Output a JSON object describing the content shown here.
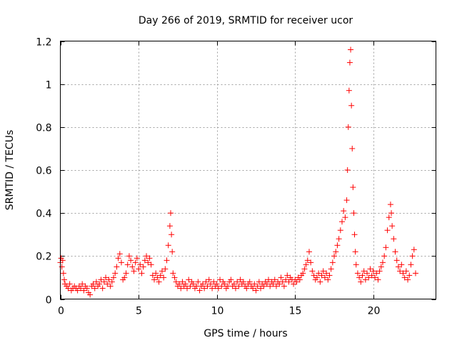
{
  "chart_data": {
    "type": "scatter",
    "title": "Day 266 of 2019, SRMTID for receiver ucor",
    "xlabel": "GPS time / hours",
    "ylabel": "SRMTID / TECUs",
    "xlim": [
      0,
      24
    ],
    "ylim": [
      0,
      1.2
    ],
    "x_ticks": [
      0,
      5,
      10,
      15,
      20
    ],
    "x_tick_labels": [
      "0",
      "5",
      "10",
      "15",
      "20"
    ],
    "y_ticks": [
      0,
      0.2,
      0.4,
      0.6,
      0.8,
      1,
      1.2
    ],
    "y_tick_labels": [
      "0",
      "0.2",
      "0.4",
      "0.6",
      "0.8",
      "1",
      "1.2"
    ],
    "grid": true,
    "marker": "+",
    "colors": {
      "series": "#ff0000",
      "grid": "#a0a0a0",
      "frame": "#000000"
    },
    "series": [
      {
        "name": "SRMTID",
        "points": [
          [
            0.0,
            0.17
          ],
          [
            0.05,
            0.19
          ],
          [
            0.1,
            0.15
          ],
          [
            0.15,
            0.18
          ],
          [
            0.2,
            0.12
          ],
          [
            0.25,
            0.09
          ],
          [
            0.3,
            0.07
          ],
          [
            0.4,
            0.06
          ],
          [
            0.5,
            0.05
          ],
          [
            0.6,
            0.07
          ],
          [
            0.7,
            0.04
          ],
          [
            0.8,
            0.05
          ],
          [
            0.9,
            0.06
          ],
          [
            1.0,
            0.05
          ],
          [
            1.1,
            0.04
          ],
          [
            1.2,
            0.06
          ],
          [
            1.3,
            0.05
          ],
          [
            1.4,
            0.07
          ],
          [
            1.5,
            0.04
          ],
          [
            1.6,
            0.06
          ],
          [
            1.7,
            0.05
          ],
          [
            1.8,
            0.03
          ],
          [
            1.9,
            0.02
          ],
          [
            2.0,
            0.06
          ],
          [
            2.1,
            0.07
          ],
          [
            2.2,
            0.05
          ],
          [
            2.3,
            0.08
          ],
          [
            2.4,
            0.06
          ],
          [
            2.5,
            0.07
          ],
          [
            2.6,
            0.09
          ],
          [
            2.7,
            0.05
          ],
          [
            2.8,
            0.08
          ],
          [
            2.9,
            0.1
          ],
          [
            3.0,
            0.07
          ],
          [
            3.1,
            0.09
          ],
          [
            3.2,
            0.06
          ],
          [
            3.3,
            0.08
          ],
          [
            3.4,
            0.1
          ],
          [
            3.5,
            0.12
          ],
          [
            3.6,
            0.15
          ],
          [
            3.7,
            0.19
          ],
          [
            3.8,
            0.21
          ],
          [
            3.9,
            0.17
          ],
          [
            4.0,
            0.09
          ],
          [
            4.1,
            0.1
          ],
          [
            4.2,
            0.12
          ],
          [
            4.3,
            0.16
          ],
          [
            4.4,
            0.2
          ],
          [
            4.5,
            0.18
          ],
          [
            4.6,
            0.15
          ],
          [
            4.7,
            0.13
          ],
          [
            4.8,
            0.17
          ],
          [
            4.9,
            0.19
          ],
          [
            5.0,
            0.14
          ],
          [
            5.1,
            0.16
          ],
          [
            5.2,
            0.12
          ],
          [
            5.3,
            0.15
          ],
          [
            5.4,
            0.18
          ],
          [
            5.5,
            0.2
          ],
          [
            5.6,
            0.17
          ],
          [
            5.7,
            0.19
          ],
          [
            5.8,
            0.16
          ],
          [
            5.9,
            0.11
          ],
          [
            6.0,
            0.09
          ],
          [
            6.1,
            0.12
          ],
          [
            6.2,
            0.1
          ],
          [
            6.3,
            0.08
          ],
          [
            6.4,
            0.11
          ],
          [
            6.5,
            0.13
          ],
          [
            6.6,
            0.1
          ],
          [
            6.7,
            0.14
          ],
          [
            6.8,
            0.18
          ],
          [
            6.9,
            0.25
          ],
          [
            7.0,
            0.34
          ],
          [
            7.05,
            0.4
          ],
          [
            7.1,
            0.3
          ],
          [
            7.15,
            0.22
          ],
          [
            7.2,
            0.12
          ],
          [
            7.3,
            0.1
          ],
          [
            7.4,
            0.08
          ],
          [
            7.5,
            0.06
          ],
          [
            7.6,
            0.07
          ],
          [
            7.7,
            0.05
          ],
          [
            7.8,
            0.08
          ],
          [
            7.9,
            0.06
          ],
          [
            8.0,
            0.07
          ],
          [
            8.1,
            0.05
          ],
          [
            8.2,
            0.09
          ],
          [
            8.3,
            0.06
          ],
          [
            8.4,
            0.08
          ],
          [
            8.5,
            0.07
          ],
          [
            8.6,
            0.05
          ],
          [
            8.7,
            0.06
          ],
          [
            8.8,
            0.08
          ],
          [
            8.9,
            0.04
          ],
          [
            9.0,
            0.06
          ],
          [
            9.1,
            0.07
          ],
          [
            9.2,
            0.05
          ],
          [
            9.3,
            0.08
          ],
          [
            9.4,
            0.06
          ],
          [
            9.5,
            0.09
          ],
          [
            9.6,
            0.07
          ],
          [
            9.7,
            0.05
          ],
          [
            9.8,
            0.08
          ],
          [
            9.9,
            0.06
          ],
          [
            10.0,
            0.07
          ],
          [
            10.1,
            0.05
          ],
          [
            10.2,
            0.09
          ],
          [
            10.3,
            0.06
          ],
          [
            10.4,
            0.08
          ],
          [
            10.5,
            0.07
          ],
          [
            10.6,
            0.05
          ],
          [
            10.7,
            0.06
          ],
          [
            10.8,
            0.08
          ],
          [
            10.9,
            0.09
          ],
          [
            11.0,
            0.06
          ],
          [
            11.1,
            0.07
          ],
          [
            11.2,
            0.05
          ],
          [
            11.3,
            0.08
          ],
          [
            11.4,
            0.06
          ],
          [
            11.5,
            0.09
          ],
          [
            11.6,
            0.07
          ],
          [
            11.7,
            0.08
          ],
          [
            11.8,
            0.06
          ],
          [
            11.9,
            0.05
          ],
          [
            12.0,
            0.07
          ],
          [
            12.1,
            0.08
          ],
          [
            12.2,
            0.06
          ],
          [
            12.3,
            0.05
          ],
          [
            12.4,
            0.07
          ],
          [
            12.5,
            0.04
          ],
          [
            12.6,
            0.06
          ],
          [
            12.7,
            0.08
          ],
          [
            12.8,
            0.05
          ],
          [
            12.9,
            0.07
          ],
          [
            13.0,
            0.06
          ],
          [
            13.1,
            0.08
          ],
          [
            13.2,
            0.07
          ],
          [
            13.3,
            0.09
          ],
          [
            13.4,
            0.06
          ],
          [
            13.5,
            0.08
          ],
          [
            13.6,
            0.07
          ],
          [
            13.7,
            0.09
          ],
          [
            13.8,
            0.06
          ],
          [
            13.9,
            0.08
          ],
          [
            14.0,
            0.07
          ],
          [
            14.1,
            0.1
          ],
          [
            14.2,
            0.08
          ],
          [
            14.3,
            0.06
          ],
          [
            14.4,
            0.09
          ],
          [
            14.5,
            0.11
          ],
          [
            14.6,
            0.08
          ],
          [
            14.7,
            0.1
          ],
          [
            14.8,
            0.09
          ],
          [
            14.9,
            0.07
          ],
          [
            15.0,
            0.09
          ],
          [
            15.1,
            0.08
          ],
          [
            15.2,
            0.1
          ],
          [
            15.3,
            0.09
          ],
          [
            15.4,
            0.11
          ],
          [
            15.5,
            0.12
          ],
          [
            15.6,
            0.14
          ],
          [
            15.7,
            0.16
          ],
          [
            15.8,
            0.18
          ],
          [
            15.9,
            0.22
          ],
          [
            16.0,
            0.17
          ],
          [
            16.1,
            0.13
          ],
          [
            16.2,
            0.11
          ],
          [
            16.3,
            0.09
          ],
          [
            16.4,
            0.1
          ],
          [
            16.5,
            0.12
          ],
          [
            16.6,
            0.08
          ],
          [
            16.7,
            0.11
          ],
          [
            16.8,
            0.13
          ],
          [
            16.9,
            0.1
          ],
          [
            17.0,
            0.12
          ],
          [
            17.1,
            0.09
          ],
          [
            17.2,
            0.11
          ],
          [
            17.3,
            0.14
          ],
          [
            17.4,
            0.17
          ],
          [
            17.5,
            0.2
          ],
          [
            17.6,
            0.22
          ],
          [
            17.7,
            0.25
          ],
          [
            17.8,
            0.28
          ],
          [
            17.9,
            0.32
          ],
          [
            18.0,
            0.36
          ],
          [
            18.1,
            0.41
          ],
          [
            18.2,
            0.38
          ],
          [
            18.3,
            0.46
          ],
          [
            18.35,
            0.6
          ],
          [
            18.4,
            0.8
          ],
          [
            18.45,
            0.97
          ],
          [
            18.5,
            1.1
          ],
          [
            18.55,
            1.16
          ],
          [
            18.6,
            0.9
          ],
          [
            18.65,
            0.7
          ],
          [
            18.7,
            0.52
          ],
          [
            18.75,
            0.4
          ],
          [
            18.8,
            0.3
          ],
          [
            18.85,
            0.22
          ],
          [
            18.9,
            0.16
          ],
          [
            19.0,
            0.12
          ],
          [
            19.1,
            0.1
          ],
          [
            19.2,
            0.08
          ],
          [
            19.3,
            0.11
          ],
          [
            19.4,
            0.13
          ],
          [
            19.5,
            0.09
          ],
          [
            19.6,
            0.12
          ],
          [
            19.7,
            0.1
          ],
          [
            19.8,
            0.14
          ],
          [
            19.9,
            0.11
          ],
          [
            20.0,
            0.13
          ],
          [
            20.1,
            0.1
          ],
          [
            20.2,
            0.12
          ],
          [
            20.3,
            0.09
          ],
          [
            20.4,
            0.13
          ],
          [
            20.5,
            0.15
          ],
          [
            20.6,
            0.17
          ],
          [
            20.7,
            0.2
          ],
          [
            20.8,
            0.24
          ],
          [
            20.9,
            0.32
          ],
          [
            21.0,
            0.38
          ],
          [
            21.1,
            0.44
          ],
          [
            21.15,
            0.4
          ],
          [
            21.2,
            0.34
          ],
          [
            21.3,
            0.28
          ],
          [
            21.4,
            0.22
          ],
          [
            21.5,
            0.18
          ],
          [
            21.6,
            0.15
          ],
          [
            21.7,
            0.13
          ],
          [
            21.8,
            0.16
          ],
          [
            21.9,
            0.12
          ],
          [
            22.0,
            0.1
          ],
          [
            22.1,
            0.13
          ],
          [
            22.2,
            0.09
          ],
          [
            22.3,
            0.11
          ],
          [
            22.4,
            0.16
          ],
          [
            22.5,
            0.2
          ],
          [
            22.6,
            0.23
          ],
          [
            22.7,
            0.12
          ]
        ]
      }
    ]
  }
}
